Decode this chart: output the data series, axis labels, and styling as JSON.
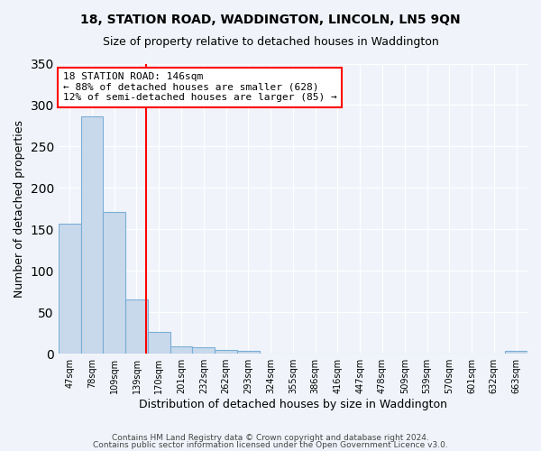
{
  "title1": "18, STATION ROAD, WADDINGTON, LINCOLN, LN5 9QN",
  "title2": "Size of property relative to detached houses in Waddington",
  "xlabel": "Distribution of detached houses by size in Waddington",
  "ylabel": "Number of detached properties",
  "categories": [
    "47sqm",
    "78sqm",
    "109sqm",
    "139sqm",
    "170sqm",
    "201sqm",
    "232sqm",
    "262sqm",
    "293sqm",
    "324sqm",
    "355sqm",
    "386sqm",
    "416sqm",
    "447sqm",
    "478sqm",
    "509sqm",
    "539sqm",
    "570sqm",
    "601sqm",
    "632sqm",
    "663sqm"
  ],
  "values": [
    157,
    286,
    171,
    65,
    26,
    9,
    8,
    5,
    3,
    0,
    0,
    0,
    0,
    0,
    0,
    0,
    0,
    0,
    0,
    0,
    3
  ],
  "bar_color": "#c9d9ec",
  "bar_edge_color": "#7aaed6",
  "vline_x": 3.42,
  "vline_color": "red",
  "annotation_text": "18 STATION ROAD: 146sqm\n← 88% of detached houses are smaller (628)\n12% of semi-detached houses are larger (85) →",
  "annotation_box_color": "white",
  "annotation_box_edge_color": "red",
  "ylim": [
    0,
    350
  ],
  "yticks": [
    0,
    50,
    100,
    150,
    200,
    250,
    300,
    350
  ],
  "footer1": "Contains HM Land Registry data © Crown copyright and database right 2024.",
  "footer2": "Contains public sector information licensed under the Open Government Licence v3.0.",
  "bg_color": "#f0f4fa",
  "plot_bg_color": "#f0f4fa",
  "grid_color": "white"
}
